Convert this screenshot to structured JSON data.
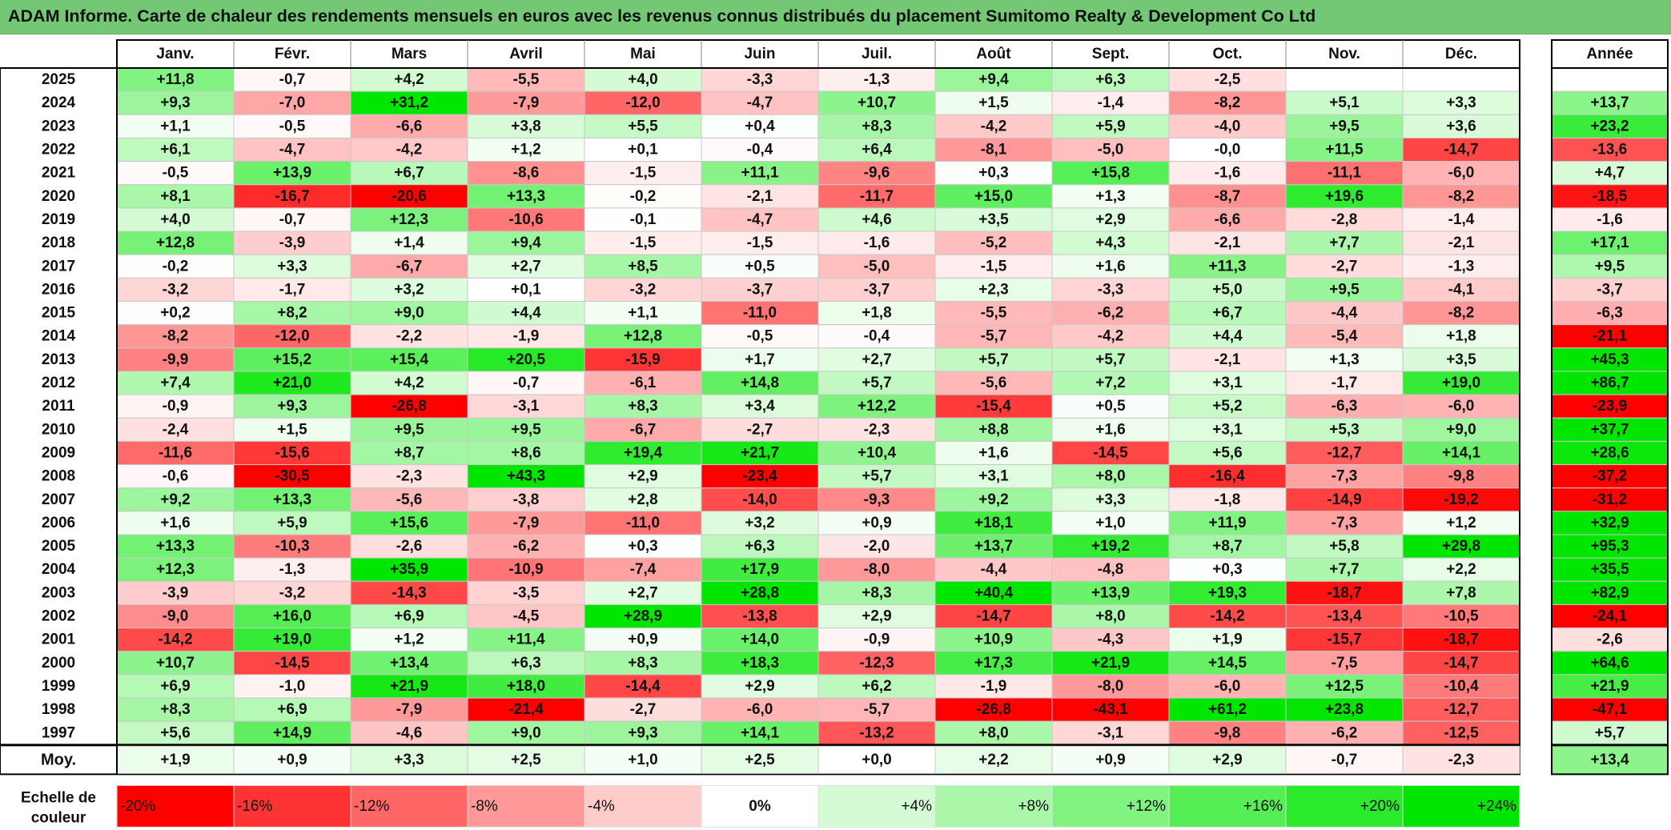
{
  "title": "ADAM Informe. Carte de chaleur des rendements mensuels en euros avec les revenus connus distribués du placement Sumitomo Realty & Development Co Ltd",
  "colors": {
    "title_bg": "#74c774",
    "positive": "#00e600",
    "negative": "#ff0000",
    "neutral": "#ffffff"
  },
  "chart_data": {
    "type": "heatmap",
    "title": "ADAM Informe. Carte de chaleur des rendements mensuels en euros avec les revenus connus distribués du placement Sumitomo Realty & Development Co Ltd",
    "months": [
      "Janv.",
      "Févr.",
      "Mars",
      "Avril",
      "Mai",
      "Juin",
      "Juil.",
      "Août",
      "Sept.",
      "Oct.",
      "Nov.",
      "Déc."
    ],
    "annual_header": "Année",
    "rows": [
      {
        "year": "2025",
        "values": [
          "+11,8",
          "-0,7",
          "+4,2",
          "-5,5",
          "+4,0",
          "-3,3",
          "-1,3",
          "+9,4",
          "+6,3",
          "-2,5",
          "",
          ""
        ],
        "annual": ""
      },
      {
        "year": "2024",
        "values": [
          "+9,3",
          "-7,0",
          "+31,2",
          "-7,9",
          "-12,0",
          "-4,7",
          "+10,7",
          "+1,5",
          "-1,4",
          "-8,2",
          "+5,1",
          "+3,3"
        ],
        "annual": "+13,7"
      },
      {
        "year": "2023",
        "values": [
          "+1,1",
          "-0,5",
          "-6,6",
          "+3,8",
          "+5,5",
          "+0,4",
          "+8,3",
          "-4,2",
          "+5,9",
          "-4,0",
          "+9,5",
          "+3,6"
        ],
        "annual": "+23,2"
      },
      {
        "year": "2022",
        "values": [
          "+6,1",
          "-4,7",
          "-4,2",
          "+1,2",
          "+0,1",
          "-0,4",
          "+6,4",
          "-8,1",
          "-5,0",
          "-0,0",
          "+11,5",
          "-14,7"
        ],
        "annual": "-13,6"
      },
      {
        "year": "2021",
        "values": [
          "-0,5",
          "+13,9",
          "+6,7",
          "-8,6",
          "-1,5",
          "+11,1",
          "-9,6",
          "+0,3",
          "+15,8",
          "-1,6",
          "-11,1",
          "-6,0"
        ],
        "annual": "+4,7"
      },
      {
        "year": "2020",
        "values": [
          "+8,1",
          "-16,7",
          "-20,6",
          "+13,3",
          "-0,2",
          "-2,1",
          "-11,7",
          "+15,0",
          "+1,3",
          "-8,7",
          "+19,6",
          "-8,2"
        ],
        "annual": "-18,5"
      },
      {
        "year": "2019",
        "values": [
          "+4,0",
          "-0,7",
          "+12,3",
          "-10,6",
          "-0,1",
          "-4,7",
          "+4,6",
          "+3,5",
          "+2,9",
          "-6,6",
          "-2,8",
          "-1,4"
        ],
        "annual": "-1,6"
      },
      {
        "year": "2018",
        "values": [
          "+12,8",
          "-3,9",
          "+1,4",
          "+9,4",
          "-1,5",
          "-1,5",
          "-1,6",
          "-5,2",
          "+4,3",
          "-2,1",
          "+7,7",
          "-2,1"
        ],
        "annual": "+17,1"
      },
      {
        "year": "2017",
        "values": [
          "-0,2",
          "+3,3",
          "-6,7",
          "+2,7",
          "+8,5",
          "+0,5",
          "-5,0",
          "-1,5",
          "+1,6",
          "+11,3",
          "-2,7",
          "-1,3"
        ],
        "annual": "+9,5"
      },
      {
        "year": "2016",
        "values": [
          "-3,2",
          "-1,7",
          "+3,2",
          "+0,1",
          "-3,2",
          "-3,7",
          "-3,7",
          "+2,3",
          "-3,3",
          "+5,0",
          "+9,5",
          "-4,1"
        ],
        "annual": "-3,7"
      },
      {
        "year": "2015",
        "values": [
          "+0,2",
          "+8,2",
          "+9,0",
          "+4,4",
          "+1,1",
          "-11,0",
          "+1,8",
          "-5,5",
          "-6,2",
          "+6,7",
          "-4,4",
          "-8,2"
        ],
        "annual": "-6,3"
      },
      {
        "year": "2014",
        "values": [
          "-8,2",
          "-12,0",
          "-2,2",
          "-1,9",
          "+12,8",
          "-0,5",
          "-0,4",
          "-5,7",
          "-4,2",
          "+4,4",
          "-5,4",
          "+1,8"
        ],
        "annual": "-21,1"
      },
      {
        "year": "2013",
        "values": [
          "-9,9",
          "+15,2",
          "+15,4",
          "+20,5",
          "-15,9",
          "+1,7",
          "+2,7",
          "+5,7",
          "+5,7",
          "-2,1",
          "+1,3",
          "+3,5"
        ],
        "annual": "+45,3"
      },
      {
        "year": "2012",
        "values": [
          "+7,4",
          "+21,0",
          "+4,2",
          "-0,7",
          "-6,1",
          "+14,8",
          "+5,7",
          "-5,6",
          "+7,2",
          "+3,1",
          "-1,7",
          "+19,0"
        ],
        "annual": "+86,7"
      },
      {
        "year": "2011",
        "values": [
          "-0,9",
          "+9,3",
          "-26,8",
          "-3,1",
          "+8,3",
          "+3,4",
          "+12,2",
          "-15,4",
          "+0,5",
          "+5,2",
          "-6,3",
          "-6,0"
        ],
        "annual": "-23,9"
      },
      {
        "year": "2010",
        "values": [
          "-2,4",
          "+1,5",
          "+9,5",
          "+9,5",
          "-6,7",
          "-2,7",
          "-2,3",
          "+8,8",
          "+1,6",
          "+3,1",
          "+5,3",
          "+9,0"
        ],
        "annual": "+37,7"
      },
      {
        "year": "2009",
        "values": [
          "-11,6",
          "-15,6",
          "+8,7",
          "+8,6",
          "+19,4",
          "+21,7",
          "+10,4",
          "+1,6",
          "-14,5",
          "+5,6",
          "-12,7",
          "+14,1"
        ],
        "annual": "+28,6"
      },
      {
        "year": "2008",
        "values": [
          "-0,6",
          "-30,5",
          "-2,3",
          "+43,3",
          "+2,9",
          "-23,4",
          "+5,7",
          "+3,1",
          "+8,0",
          "-16,4",
          "-7,3",
          "-9,8"
        ],
        "annual": "-37,2"
      },
      {
        "year": "2007",
        "values": [
          "+9,2",
          "+13,3",
          "-5,6",
          "-3,8",
          "+2,8",
          "-14,0",
          "-9,3",
          "+9,2",
          "+3,3",
          "-1,8",
          "-14,9",
          "-19,2"
        ],
        "annual": "-31,2"
      },
      {
        "year": "2006",
        "values": [
          "+1,6",
          "+5,9",
          "+15,6",
          "-7,9",
          "-11,0",
          "+3,2",
          "+0,9",
          "+18,1",
          "+1,0",
          "+11,9",
          "-7,3",
          "+1,2"
        ],
        "annual": "+32,9"
      },
      {
        "year": "2005",
        "values": [
          "+13,3",
          "-10,3",
          "-2,6",
          "-6,2",
          "+0,3",
          "+6,3",
          "-2,0",
          "+13,7",
          "+19,2",
          "+8,7",
          "+5,8",
          "+29,8"
        ],
        "annual": "+95,3"
      },
      {
        "year": "2004",
        "values": [
          "+12,3",
          "-1,3",
          "+35,9",
          "-10,9",
          "-7,4",
          "+17,9",
          "-8,0",
          "-4,4",
          "-4,8",
          "+0,3",
          "+7,7",
          "+2,2"
        ],
        "annual": "+35,5"
      },
      {
        "year": "2003",
        "values": [
          "-3,9",
          "-3,2",
          "-14,3",
          "-3,5",
          "+2,7",
          "+28,8",
          "+8,3",
          "+40,4",
          "+13,9",
          "+19,3",
          "-18,7",
          "+7,8"
        ],
        "annual": "+82,9"
      },
      {
        "year": "2002",
        "values": [
          "-9,0",
          "+16,0",
          "+6,9",
          "-4,5",
          "+28,9",
          "-13,8",
          "+2,9",
          "-14,7",
          "+8,0",
          "-14,2",
          "-13,4",
          "-10,5"
        ],
        "annual": "-24,1"
      },
      {
        "year": "2001",
        "values": [
          "-14,2",
          "+19,0",
          "+1,2",
          "+11,4",
          "+0,9",
          "+14,0",
          "-0,9",
          "+10,9",
          "-4,3",
          "+1,9",
          "-15,7",
          "-18,7"
        ],
        "annual": "-2,6"
      },
      {
        "year": "2000",
        "values": [
          "+10,7",
          "-14,5",
          "+13,4",
          "+6,3",
          "+8,3",
          "+18,3",
          "-12,3",
          "+17,3",
          "+21,9",
          "+14,5",
          "-7,5",
          "-14,7"
        ],
        "annual": "+64,6"
      },
      {
        "year": "1999",
        "values": [
          "+6,9",
          "-1,0",
          "+21,9",
          "+18,0",
          "-14,4",
          "+2,9",
          "+6,2",
          "-1,9",
          "-8,0",
          "-6,0",
          "+12,5",
          "-10,4"
        ],
        "annual": "+21,9"
      },
      {
        "year": "1998",
        "values": [
          "+8,3",
          "+6,9",
          "-7,9",
          "-21,4",
          "-2,7",
          "-6,0",
          "-5,7",
          "-26,8",
          "-43,1",
          "+61,2",
          "+23,8",
          "-12,7"
        ],
        "annual": "-47,1"
      },
      {
        "year": "1997",
        "values": [
          "+5,6",
          "+14,9",
          "-4,6",
          "+9,0",
          "+9,3",
          "+14,1",
          "-13,2",
          "+8,0",
          "-3,1",
          "-9,8",
          "-6,2",
          "-12,5"
        ],
        "annual": "+5,7"
      }
    ],
    "average": {
      "label": "Moy.",
      "values": [
        "+1,9",
        "+0,9",
        "+3,3",
        "+2,5",
        "+1,0",
        "+2,5",
        "+0,0",
        "+2,2",
        "+0,9",
        "+2,9",
        "-0,7",
        "-2,3"
      ],
      "annual": "+13,4"
    },
    "scale": {
      "label_line1": "Echelle de",
      "label_line2": "couleur",
      "entries": [
        {
          "label": "-20%",
          "value": -20
        },
        {
          "label": "-16%",
          "value": -16
        },
        {
          "label": "-12%",
          "value": -12
        },
        {
          "label": "-8%",
          "value": -8
        },
        {
          "label": "-4%",
          "value": -4
        },
        {
          "label": "0%",
          "value": 0
        },
        {
          "label": "+4%",
          "value": 4
        },
        {
          "label": "+8%",
          "value": 8
        },
        {
          "label": "+12%",
          "value": 12
        },
        {
          "label": "+16%",
          "value": 16
        },
        {
          "label": "+20%",
          "value": 20
        },
        {
          "label": "+24%",
          "value": 24
        }
      ]
    }
  }
}
